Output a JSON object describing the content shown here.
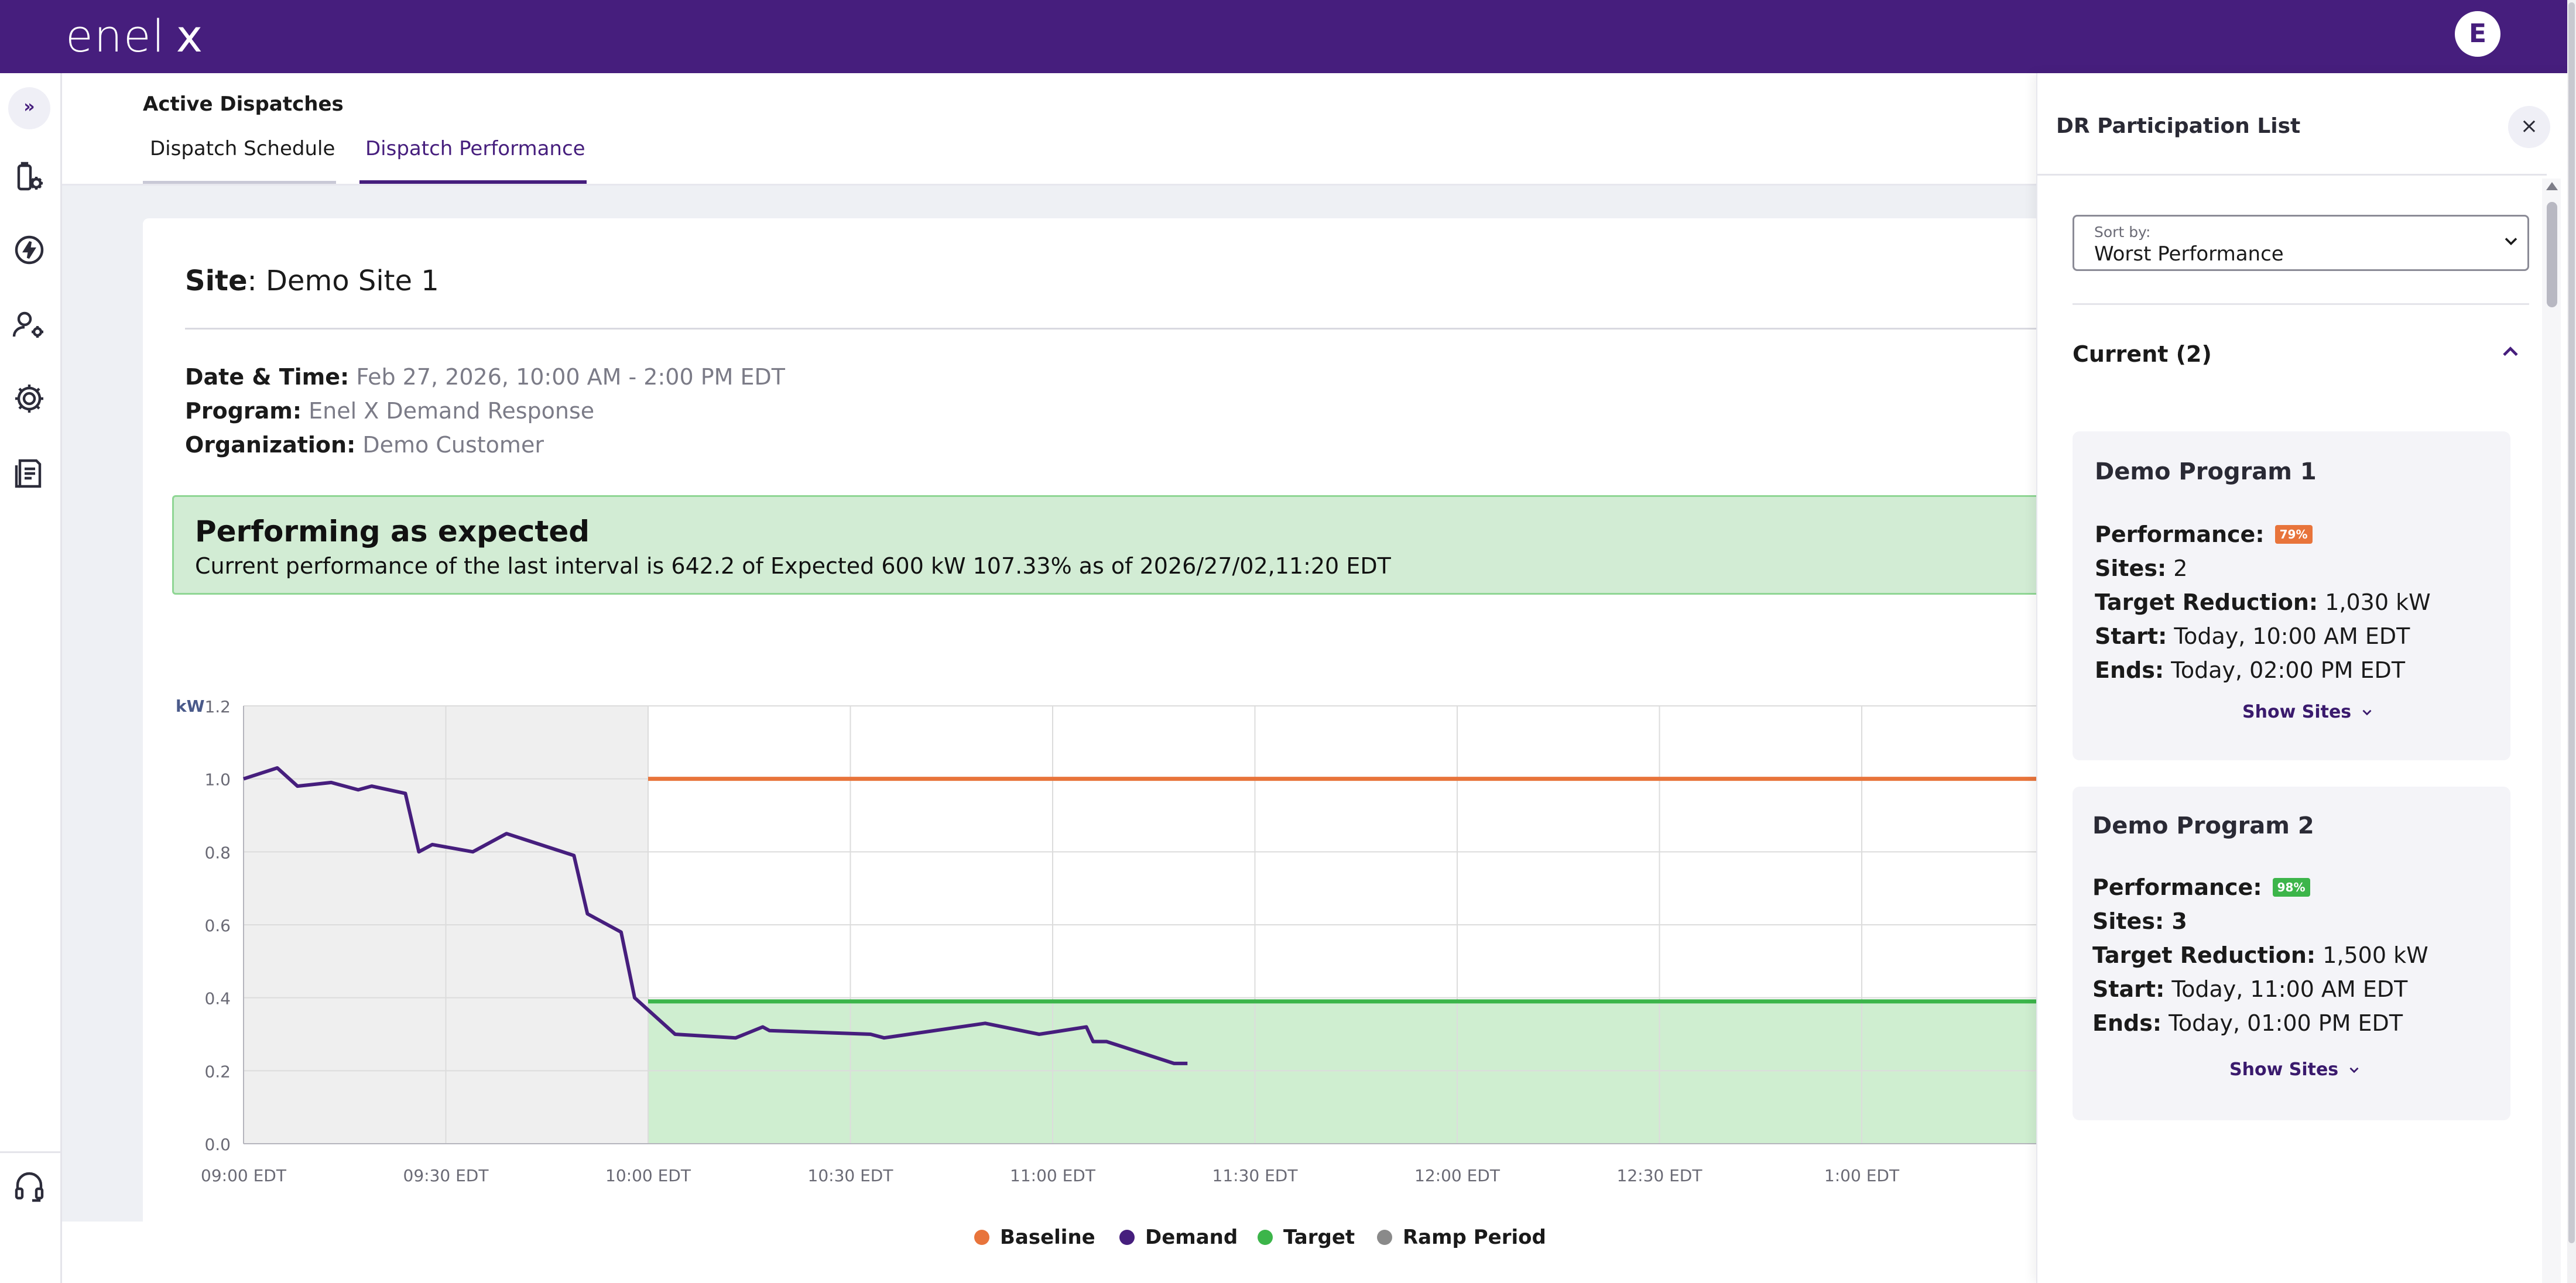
{
  "brand": {
    "logo_text": "enel",
    "logo_x": "x",
    "primary_color": "#461e7d",
    "user_initial": "E"
  },
  "rail": {
    "expand_glyph": "»",
    "icons": [
      "dispatch-settings-icon",
      "lightning-icon",
      "user-settings-icon",
      "gear-icon",
      "report-icon",
      "headset-icon"
    ]
  },
  "page": {
    "title": "Active Dispatches",
    "tabs": [
      {
        "label": "Dispatch Schedule",
        "active": false
      },
      {
        "label": "Dispatch Performance",
        "active": true
      }
    ]
  },
  "site": {
    "label": "Site",
    "name": "Demo Site 1",
    "date_label": "Date & Time:",
    "date_value": "Feb 27, 2026, 10:00 AM - 2:00 PM EDT",
    "program_label": "Program:",
    "program_value": "Enel X Demand Response",
    "org_label": "Organization:",
    "org_value": "Demo Customer"
  },
  "status": {
    "title": "Performing as expected",
    "text": "Current performance of the last interval is 642.2 of Expected 600 kW 107.33%  as of 2026/27/02,11:20 EDT",
    "color": "#d2ecd4"
  },
  "chart_data": {
    "type": "line",
    "ylabel": "kW",
    "ylim": [
      0,
      1.2
    ],
    "yticks": [
      "0.0",
      "0.2",
      "0.4",
      "0.6",
      "0.8",
      "1.0",
      "1.2"
    ],
    "xticks": [
      "09:00 EDT",
      "09:30 EDT",
      "10:00 EDT",
      "10:30 EDT",
      "11:00 EDT",
      "11:30 EDT",
      "12:00 EDT",
      "12:30 EDT",
      "1:00 EDT"
    ],
    "ramp_period": {
      "start": "09:00",
      "end": "10:00",
      "color": "#efefef"
    },
    "series": [
      {
        "name": "Baseline",
        "color": "#e8743b",
        "x": [
          "10:00",
          "14:00"
        ],
        "y": [
          1.0,
          1.0
        ]
      },
      {
        "name": "Demand",
        "color": "#461e7d",
        "x": [
          "09:00",
          "09:05",
          "09:08",
          "09:13",
          "09:17",
          "09:19",
          "09:24",
          "09:26",
          "09:28",
          "09:34",
          "09:39",
          "09:49",
          "09:51",
          "09:56",
          "09:58",
          "10:04",
          "10:13",
          "10:17",
          "10:18",
          "10:33",
          "10:35",
          "10:50",
          "10:58",
          "11:05",
          "11:06",
          "11:08",
          "11:18",
          "11:20"
        ],
        "y": [
          1.0,
          1.03,
          0.98,
          0.99,
          0.97,
          0.98,
          0.96,
          0.8,
          0.82,
          0.8,
          0.85,
          0.79,
          0.63,
          0.58,
          0.4,
          0.3,
          0.29,
          0.32,
          0.31,
          0.3,
          0.29,
          0.33,
          0.3,
          0.32,
          0.28,
          0.28,
          0.22,
          0.22
        ]
      },
      {
        "name": "Target",
        "color": "#3cb54a",
        "x": [
          "10:00",
          "14:00"
        ],
        "y": [
          0.39,
          0.39
        ]
      },
      {
        "name": "Ramp Period",
        "color": "#8a8a8a"
      }
    ]
  },
  "panel": {
    "title": "DR Participation List",
    "close_glyph": "×",
    "sort_label": "Sort by:",
    "sort_value": "Worst Performance",
    "section_title": "Current (2)",
    "programs": [
      {
        "name": "Demo Program 1",
        "performance_label": "Performance:",
        "performance_badge": "79%",
        "badge_color": "#e8743b",
        "sites_label": "Sites:",
        "sites_value": "2",
        "target_label": "Target Reduction:",
        "target_value": "1,030 kW",
        "start_label": "Start:",
        "start_value": "Today, 10:00 AM EDT",
        "ends_label": "Ends:",
        "ends_value": "Today, 02:00 PM EDT",
        "show_sites": "Show Sites"
      },
      {
        "name": "Demo Program 2",
        "performance_label": "Performance:",
        "performance_badge": "98%",
        "badge_color": "#3cb54a",
        "sites_label": "Sites: 3",
        "sites_value": "",
        "target_label": "Target Reduction:",
        "target_value": "1,500 kW",
        "start_label": "Start:",
        "start_value": "Today, 11:00 AM EDT",
        "ends_label": "Ends:",
        "ends_value": "Today, 01:00 PM EDT",
        "show_sites": "Show Sites"
      }
    ]
  }
}
